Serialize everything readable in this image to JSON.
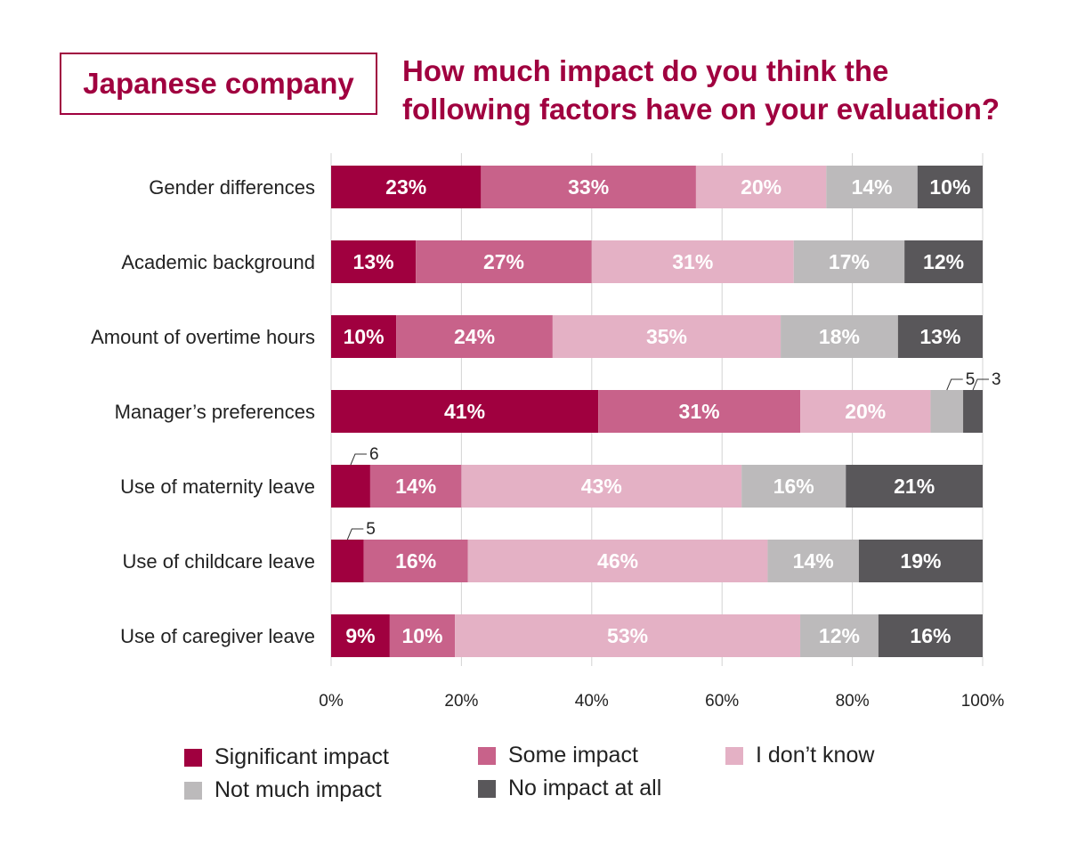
{
  "header": {
    "badge": "Japanese company",
    "title_line1": "How much impact do you think the",
    "title_line2": "following factors have on your evaluation?"
  },
  "chart_data": {
    "type": "bar",
    "orientation": "horizontal",
    "stacked": true,
    "categories": [
      "Gender differences",
      "Academic background",
      "Amount of overtime hours",
      "Manager’s preferences",
      "Use of maternity leave",
      "Use of childcare leave",
      "Use of caregiver leave"
    ],
    "series": [
      {
        "name": "Significant impact",
        "color": "#a0003f",
        "values": [
          23,
          13,
          10,
          41,
          6,
          5,
          9
        ],
        "labels": [
          "23%",
          "13%",
          "10%",
          "41%",
          "6",
          "5",
          "9%"
        ]
      },
      {
        "name": "Some impact",
        "color": "#c8628a",
        "values": [
          33,
          27,
          24,
          31,
          14,
          16,
          10
        ],
        "labels": [
          "33%",
          "27%",
          "24%",
          "31%",
          "14%",
          "16%",
          "10%"
        ]
      },
      {
        "name": "I don’t know",
        "color": "#e4b1c5",
        "values": [
          20,
          31,
          35,
          20,
          43,
          46,
          53
        ],
        "labels": [
          "20%",
          "31%",
          "35%",
          "20%",
          "43%",
          "46%",
          "53%"
        ]
      },
      {
        "name": "Not much impact",
        "color": "#bcbabb",
        "values": [
          14,
          17,
          18,
          5,
          16,
          14,
          12
        ],
        "labels": [
          "14%",
          "17%",
          "18%",
          "5",
          "16%",
          "14%",
          "12%"
        ]
      },
      {
        "name": "No impact at all",
        "color": "#59575a",
        "values": [
          10,
          12,
          13,
          3,
          21,
          19,
          16
        ],
        "labels": [
          "10%",
          "12%",
          "13%",
          "3",
          "21%",
          "19%",
          "16%"
        ]
      }
    ],
    "callouts": [
      {
        "category_index": 3,
        "series_index": 3
      },
      {
        "category_index": 3,
        "series_index": 4
      },
      {
        "category_index": 4,
        "series_index": 0
      },
      {
        "category_index": 5,
        "series_index": 0
      }
    ],
    "x_ticks": [
      "0%",
      "20%",
      "40%",
      "60%",
      "80%",
      "100%"
    ],
    "xlim": [
      0,
      100
    ],
    "grid": true,
    "legend_position": "bottom"
  },
  "legend": {
    "items": [
      {
        "label": "Significant impact",
        "color": "#a0003f"
      },
      {
        "label": "Some impact",
        "color": "#c8628a"
      },
      {
        "label": "I don’t know",
        "color": "#e4b1c5"
      },
      {
        "label": "Not much impact",
        "color": "#bcbabb"
      },
      {
        "label": "No impact at all",
        "color": "#59575a"
      }
    ]
  }
}
